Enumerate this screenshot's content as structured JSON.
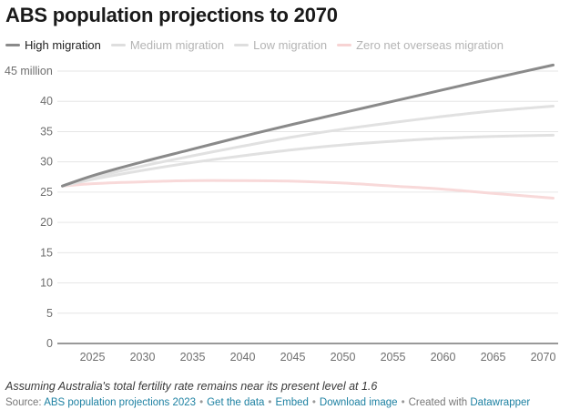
{
  "title": "ABS population projections to 2070",
  "chart_data": {
    "type": "line",
    "title": "ABS population projections to 2070",
    "xlabel": "",
    "ylabel": "",
    "y_unit_label": "45 million",
    "xlim": [
      2021.5,
      2071.5
    ],
    "ylim": [
      0,
      45
    ],
    "x_ticks": [
      2025,
      2030,
      2035,
      2040,
      2045,
      2050,
      2055,
      2060,
      2065,
      2070
    ],
    "y_ticks": [
      0,
      5,
      10,
      15,
      20,
      25,
      30,
      35,
      40,
      45
    ],
    "grid": "horizontal",
    "legend_position": "top-left",
    "x": [
      2022,
      2025,
      2030,
      2035,
      2040,
      2045,
      2050,
      2055,
      2060,
      2065,
      2071
    ],
    "series": [
      {
        "name": "High migration",
        "color": "#8a8a8a",
        "values": [
          26.0,
          27.7,
          30.0,
          32.1,
          34.2,
          36.2,
          38.1,
          40.0,
          41.9,
          43.8,
          46.0
        ]
      },
      {
        "name": "Medium migration",
        "color": "#e1e1e1",
        "values": [
          26.0,
          27.4,
          29.3,
          31.0,
          32.6,
          34.1,
          35.4,
          36.5,
          37.5,
          38.4,
          39.2
        ]
      },
      {
        "name": "Low migration",
        "color": "#e1e1e1",
        "values": [
          26.0,
          27.1,
          28.6,
          29.9,
          31.0,
          32.0,
          32.8,
          33.4,
          33.9,
          34.2,
          34.4
        ]
      },
      {
        "name": "Zero net overseas migration",
        "color": "#f8d9d9",
        "values": [
          26.0,
          26.4,
          26.7,
          26.9,
          26.9,
          26.8,
          26.5,
          26.0,
          25.5,
          24.8,
          24.0
        ]
      }
    ]
  },
  "footnote": "Assuming Australia's total fertility rate remains near its present level at 1.6",
  "footer": {
    "source_prefix": "Source:",
    "source_link": "ABS population projections 2023",
    "separator": "•",
    "get_data": "Get the data",
    "embed": "Embed",
    "download": "Download image",
    "created_with": "Created with",
    "datawrapper": "Datawrapper"
  },
  "colors": {
    "axis": "#333333",
    "grid": "#e6e6e6",
    "tick_text": "#6f6f6f",
    "link": "#1d81a2"
  }
}
